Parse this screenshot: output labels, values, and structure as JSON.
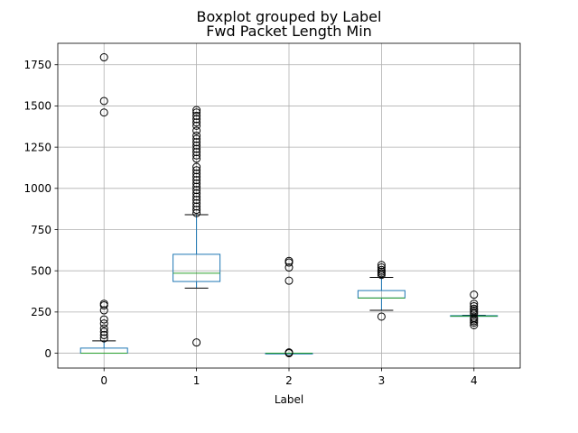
{
  "chart_data": {
    "type": "boxplot",
    "suptitle": "Boxplot grouped by Label",
    "title": "Fwd Packet Length Min",
    "xlabel": "Label",
    "ylabel": "",
    "ylim": [
      -90,
      1880
    ],
    "grid": true,
    "yticks": [
      0,
      250,
      500,
      750,
      1000,
      1250,
      1500,
      1750
    ],
    "categories": [
      "0",
      "1",
      "2",
      "3",
      "4"
    ],
    "box_color": "#1f77b4",
    "median_color": "#2ca02c",
    "whisker_color": "#000000",
    "outlier_color": "#000000",
    "boxes": [
      {
        "label": "0",
        "whislo": 0,
        "q1": 0,
        "median": 0,
        "q3": 31,
        "whishi": 75,
        "fliers": [
          90,
          110,
          130,
          150,
          180,
          205,
          260,
          290,
          300,
          1460,
          1530,
          1795
        ]
      },
      {
        "label": "1",
        "whislo": 395,
        "q1": 435,
        "median": 485,
        "q3": 600,
        "whishi": 840,
        "fliers": [
          65,
          850,
          870,
          890,
          910,
          930,
          950,
          970,
          990,
          1010,
          1030,
          1050,
          1070,
          1090,
          1110,
          1130,
          1180,
          1200,
          1220,
          1240,
          1260,
          1280,
          1300,
          1320,
          1350,
          1380,
          1400,
          1420,
          1440,
          1460,
          1475
        ]
      },
      {
        "label": "2",
        "whislo": 0,
        "q1": 0,
        "median": 0,
        "q3": 0,
        "whishi": 0,
        "fliers": [
          0,
          5,
          440,
          520,
          550,
          560
        ]
      },
      {
        "label": "3",
        "whislo": 260,
        "q1": 335,
        "median": 335,
        "q3": 380,
        "whishi": 460,
        "fliers": [
          222,
          475,
          485,
          495,
          505,
          520,
          535
        ]
      },
      {
        "label": "4",
        "whislo": 225,
        "q1": 225,
        "median": 225,
        "q3": 228,
        "whishi": 230,
        "fliers": [
          170,
          185,
          195,
          205,
          215,
          240,
          250,
          260,
          270,
          285,
          300,
          355
        ]
      }
    ]
  }
}
